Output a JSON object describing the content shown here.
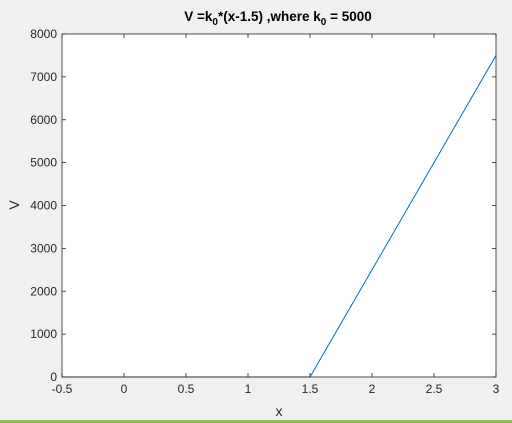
{
  "chart_data": {
    "type": "line",
    "title_parts": {
      "a": "V =k",
      "sub1": "0",
      "b": "*(x-1.5) ,where k",
      "sub2": "0",
      "c": " = 5000"
    },
    "xlabel": "x",
    "ylabel": "V",
    "xlim": [
      -0.5,
      3
    ],
    "ylim": [
      0,
      8000
    ],
    "xticks": [
      -0.5,
      0,
      0.5,
      1,
      1.5,
      2,
      2.5,
      3
    ],
    "yticks": [
      0,
      1000,
      2000,
      3000,
      4000,
      5000,
      6000,
      7000,
      8000
    ],
    "grid": false,
    "series": [
      {
        "color": "#0072bd",
        "x": [
          -0.5,
          1.5,
          3
        ],
        "y": [
          0,
          0,
          7500
        ]
      }
    ]
  },
  "colors": {
    "plot_bg": "#ffffff",
    "figure_bg": "#f0f0f0",
    "axis": "#262626",
    "line": "#0072bd",
    "bottom_bar": "#8fbc5a"
  }
}
